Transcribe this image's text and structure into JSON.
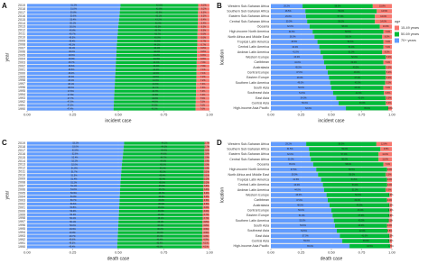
{
  "chart_data": [
    {
      "type": "bar",
      "orientation": "horizontal",
      "stacked": true,
      "panel": "A",
      "ylabel": "year",
      "xlabel": "incident case",
      "categories": [
        "2019",
        "2018",
        "2017",
        "2016",
        "2015",
        "2014",
        "2013",
        "2012",
        "2011",
        "2010",
        "2009",
        "2008",
        "2007",
        "2006",
        "2005",
        "2004",
        "2003",
        "2002",
        "2001",
        "2000",
        "1999",
        "1998",
        "1997",
        "1996",
        "1995",
        "1994",
        "1993",
        "1992",
        "1991",
        "1990"
      ],
      "xlim": [
        0,
        1
      ],
      "xticks": [
        {
          "value": 0,
          "label": "0.00"
        },
        0.25,
        {
          "value": 0.5,
          "label": "0.50"
        },
        0.75,
        {
          "value": 1,
          "label": "1.00"
        }
      ],
      "series": [
        {
          "color": "#619cff",
          "values": [
            0.512,
            0.51,
            0.508,
            0.506,
            0.504,
            0.502,
            0.5,
            0.498,
            0.497,
            0.495,
            0.494,
            0.492,
            0.491,
            0.49,
            0.489,
            0.488,
            0.487,
            0.486,
            0.485,
            0.484,
            0.483,
            0.482,
            0.481,
            0.48,
            0.479,
            0.478,
            0.477,
            0.476,
            0.475,
            0.474
          ],
          "value_labels": [
            "51.2%",
            "51.0%",
            "50.8%",
            "50.6%",
            "50.4%",
            "50.2%",
            "50.0%",
            "49.8%",
            "49.7%",
            "49.5%",
            "49.4%",
            "49.2%",
            "49.1%",
            "49.0%",
            "48.9%",
            "48.8%",
            "48.7%",
            "48.6%",
            "48.5%",
            "48.4%",
            "48.3%",
            "48.2%",
            "48.1%",
            "48.0%",
            "47.9%",
            "47.8%",
            "47.7%",
            "47.6%",
            "47.5%",
            "47.4%"
          ]
        },
        {
          "color": "#00ba38",
          "values": [
            0.426,
            0.428,
            0.429,
            0.431,
            0.432,
            0.434,
            0.435,
            0.437,
            0.437,
            0.439,
            0.439,
            0.441,
            0.441,
            0.442,
            0.442,
            0.443,
            0.443,
            0.444,
            0.444,
            0.445,
            0.445,
            0.446,
            0.446,
            0.447,
            0.447,
            0.448,
            0.448,
            0.449,
            0.449,
            0.45
          ],
          "value_labels": [
            "42.6%",
            "42.8%",
            "42.9%",
            "43.1%",
            "43.2%",
            "43.4%",
            "43.5%",
            "43.7%",
            "43.7%",
            "43.9%",
            "43.9%",
            "44.1%",
            "44.1%",
            "44.2%",
            "44.2%",
            "44.3%",
            "44.3%",
            "44.4%",
            "44.4%",
            "44.5%",
            "44.5%",
            "44.6%",
            "44.6%",
            "44.7%",
            "44.7%",
            "44.8%",
            "44.8%",
            "44.9%",
            "44.9%",
            "45.0%"
          ]
        },
        {
          "color": "#f8766d",
          "values": [
            0.062,
            0.062,
            0.063,
            0.063,
            0.064,
            0.064,
            0.065,
            0.065,
            0.066,
            0.066,
            0.067,
            0.067,
            0.068,
            0.068,
            0.069,
            0.069,
            0.07,
            0.07,
            0.071,
            0.071,
            0.072,
            0.072,
            0.073,
            0.073,
            0.074,
            0.074,
            0.075,
            0.075,
            0.076,
            0.076
          ],
          "value_labels": [
            "6.2%",
            "6.2%",
            "6.3%",
            "6.3%",
            "6.4%",
            "6.4%",
            "6.5%",
            "6.5%",
            "6.6%",
            "6.6%",
            "6.7%",
            "6.7%",
            "6.8%",
            "6.8%",
            "6.9%",
            "6.9%",
            "7.0%",
            "7.0%",
            "7.1%",
            "7.1%",
            "7.2%",
            "7.2%",
            "7.3%",
            "7.3%",
            "7.4%",
            "7.4%",
            "7.5%",
            "7.5%",
            "7.6%",
            "7.6%"
          ]
        }
      ]
    },
    {
      "type": "bar",
      "orientation": "horizontal",
      "stacked": true,
      "panel": "B",
      "ylabel": "location",
      "xlabel": "incident case",
      "legend": "right",
      "legend_title": "age",
      "categories": [
        "Western Sub-Saharan Africa",
        "Southern Sub-Saharan Africa",
        "Eastern Sub-Saharan Africa",
        "Central Sub-Saharan Africa",
        "Oceania",
        "High-income North America",
        "North Africa and Middle East",
        "Tropical Latin America",
        "Central Latin America",
        "Andean Latin America",
        "Western Europe",
        "Caribbean",
        "Australasia",
        "Central Europe",
        "Eastern Europe",
        "Southern Latin America",
        "South Asia",
        "Southeast Asia",
        "East Asia",
        "Central Asia",
        "High-income Asia Pacific"
      ],
      "xlim": [
        0,
        1
      ],
      "xticks": [
        {
          "value": 0,
          "label": "0.00"
        },
        0.25,
        {
          "value": 0.5,
          "label": "0.50"
        },
        0.75,
        {
          "value": 1,
          "label": "1.00"
        }
      ],
      "series": [
        {
          "name": "70+ years",
          "color": "#619cff",
          "values": [
            0.262,
            0.285,
            0.29,
            0.3,
            0.32,
            0.345,
            0.36,
            0.385,
            0.4,
            0.41,
            0.43,
            0.44,
            0.455,
            0.47,
            0.48,
            0.49,
            0.5,
            0.515,
            0.54,
            0.56,
            0.62
          ],
          "value_labels": [
            "26.2%",
            "28.5%",
            "29.0%",
            "30.0%",
            "32.0%",
            "34.5%",
            "36.0%",
            "38.5%",
            "40.0%",
            "41.0%",
            "43.0%",
            "44.0%",
            "45.5%",
            "47.0%",
            "48.0%",
            "49.0%",
            "50.0%",
            "51.5%",
            "54.0%",
            "56.0%",
            "62.0%"
          ]
        },
        {
          "name": "50-69 years",
          "color": "#00ba38",
          "values": [
            0.58,
            0.59,
            0.57,
            0.56,
            0.58,
            0.585,
            0.56,
            0.545,
            0.53,
            0.51,
            0.52,
            0.49,
            0.495,
            0.48,
            0.47,
            0.455,
            0.43,
            0.42,
            0.41,
            0.39,
            0.35
          ],
          "value_labels": [
            "58.0%",
            "59.0%",
            "57.0%",
            "56.0%",
            "58.0%",
            "58.5%",
            "56.0%",
            "54.5%",
            "53.0%",
            "51.0%",
            "52.0%",
            "49.0%",
            "49.5%",
            "48.0%",
            "47.0%",
            "45.5%",
            "43.0%",
            "42.0%",
            "41.0%",
            "39.0%",
            "35.0%"
          ]
        },
        {
          "name": "15-49 years",
          "color": "#f8766d",
          "values": [
            0.158,
            0.125,
            0.14,
            0.14,
            0.1,
            0.07,
            0.08,
            0.07,
            0.07,
            0.08,
            0.05,
            0.07,
            0.05,
            0.05,
            0.05,
            0.055,
            0.07,
            0.065,
            0.05,
            0.05,
            0.03
          ],
          "value_labels": [
            "15.8%",
            "12.5%",
            "14.0%",
            "14.0%",
            "10.0%",
            "7.0%",
            "8.0%",
            "7.0%",
            "7.0%",
            "8.0%",
            "5.0%",
            "7.0%",
            "5.0%",
            "5.0%",
            "5.0%",
            "5.5%",
            "7.0%",
            "6.5%",
            "5.0%",
            "5.0%",
            "3.0%"
          ]
        }
      ]
    },
    {
      "type": "bar",
      "orientation": "horizontal",
      "stacked": true,
      "panel": "C",
      "ylabel": "year",
      "xlabel": "death case",
      "categories": [
        "2019",
        "2018",
        "2017",
        "2016",
        "2015",
        "2014",
        "2013",
        "2012",
        "2011",
        "2010",
        "2009",
        "2008",
        "2007",
        "2006",
        "2005",
        "2004",
        "2003",
        "2002",
        "2001",
        "2000",
        "1999",
        "1998",
        "1997",
        "1996",
        "1995",
        "1994",
        "1993",
        "1992",
        "1991",
        "1990"
      ],
      "xlim": [
        0,
        1
      ],
      "xticks": [
        {
          "value": 0,
          "label": "0.00"
        },
        0.25,
        {
          "value": 0.5,
          "label": "0.50"
        },
        0.75,
        {
          "value": 1,
          "label": "1.00"
        }
      ],
      "series": [
        {
          "color": "#619cff",
          "values": [
            0.532,
            0.53,
            0.528,
            0.526,
            0.524,
            0.522,
            0.52,
            0.518,
            0.517,
            0.515,
            0.514,
            0.512,
            0.511,
            0.51,
            0.509,
            0.508,
            0.507,
            0.506,
            0.505,
            0.504,
            0.503,
            0.502,
            0.501,
            0.5,
            0.499,
            0.498,
            0.497,
            0.496,
            0.495,
            0.494
          ],
          "value_labels": [
            "53.2%",
            "53.0%",
            "52.8%",
            "52.6%",
            "52.4%",
            "52.2%",
            "52.0%",
            "51.8%",
            "51.7%",
            "51.5%",
            "51.4%",
            "51.2%",
            "51.1%",
            "51.0%",
            "50.9%",
            "50.8%",
            "50.7%",
            "50.6%",
            "50.5%",
            "50.4%",
            "50.3%",
            "50.2%",
            "50.1%",
            "50.0%",
            "49.9%",
            "49.8%",
            "49.7%",
            "49.6%",
            "49.5%",
            "49.4%"
          ]
        },
        {
          "color": "#00ba38",
          "values": [
            0.441,
            0.443,
            0.444,
            0.446,
            0.447,
            0.449,
            0.45,
            0.452,
            0.452,
            0.454,
            0.454,
            0.456,
            0.456,
            0.457,
            0.457,
            0.458,
            0.458,
            0.459,
            0.459,
            0.46,
            0.46,
            0.461,
            0.461,
            0.462,
            0.462,
            0.463,
            0.463,
            0.464,
            0.464,
            0.465
          ],
          "value_labels": [
            "44.1%",
            "44.3%",
            "44.4%",
            "44.6%",
            "44.7%",
            "44.9%",
            "45.0%",
            "45.2%",
            "45.2%",
            "45.4%",
            "45.4%",
            "45.6%",
            "45.6%",
            "45.7%",
            "45.7%",
            "45.8%",
            "45.8%",
            "45.9%",
            "45.9%",
            "46.0%",
            "46.0%",
            "46.1%",
            "46.1%",
            "46.2%",
            "46.2%",
            "46.3%",
            "46.3%",
            "46.4%",
            "46.4%",
            "46.5%"
          ]
        },
        {
          "color": "#f8766d",
          "values": [
            0.027,
            0.027,
            0.028,
            0.028,
            0.029,
            0.029,
            0.03,
            0.03,
            0.031,
            0.031,
            0.032,
            0.032,
            0.033,
            0.033,
            0.034,
            0.034,
            0.035,
            0.035,
            0.036,
            0.036,
            0.037,
            0.037,
            0.038,
            0.038,
            0.039,
            0.039,
            0.04,
            0.04,
            0.041,
            0.041
          ],
          "value_labels": [
            "2.7%",
            "2.7%",
            "2.8%",
            "2.8%",
            "2.9%",
            "2.9%",
            "3.0%",
            "3.0%",
            "3.1%",
            "3.1%",
            "3.2%",
            "3.2%",
            "3.3%",
            "3.3%",
            "3.4%",
            "3.4%",
            "3.5%",
            "3.5%",
            "3.6%",
            "3.6%",
            "3.7%",
            "3.7%",
            "3.8%",
            "3.8%",
            "3.9%",
            "3.9%",
            "4.0%",
            "4.0%",
            "4.1%",
            "4.1%"
          ]
        }
      ]
    },
    {
      "type": "bar",
      "orientation": "horizontal",
      "stacked": true,
      "panel": "D",
      "ylabel": "location",
      "xlabel": "death case",
      "categories": [
        "Western Sub-Saharan Africa",
        "Southern Sub-Saharan Africa",
        "Eastern Sub-Saharan Africa",
        "Central Sub-Saharan Africa",
        "Oceania",
        "High-income North America",
        "North Africa and Middle East",
        "Tropical Latin America",
        "Central Latin America",
        "Andean Latin America",
        "Western Europe",
        "Caribbean",
        "Australasia",
        "Central Europe",
        "Eastern Europe",
        "Southern Latin America",
        "South Asia",
        "Southeast Asia",
        "East Asia",
        "Central Asia",
        "High-income Asia Pacific"
      ],
      "xlim": [
        0,
        1
      ],
      "xticks": [
        {
          "value": 0,
          "label": "0.00"
        },
        0.25,
        {
          "value": 0.5,
          "label": "0.50"
        },
        0.75,
        {
          "value": 1,
          "label": "1.00"
        }
      ],
      "series": [
        {
          "color": "#619cff",
          "values": [
            0.292,
            0.315,
            0.32,
            0.33,
            0.35,
            0.375,
            0.39,
            0.415,
            0.43,
            0.44,
            0.46,
            0.47,
            0.485,
            0.5,
            0.51,
            0.52,
            0.53,
            0.545,
            0.57,
            0.59,
            0.65
          ],
          "value_labels": [
            "29.2%",
            "31.5%",
            "32.0%",
            "33.0%",
            "35.0%",
            "37.5%",
            "39.0%",
            "41.5%",
            "43.0%",
            "44.0%",
            "46.0%",
            "47.0%",
            "48.5%",
            "50.0%",
            "51.0%",
            "52.0%",
            "53.0%",
            "54.5%",
            "57.0%",
            "59.0%",
            "65.0%"
          ]
        },
        {
          "color": "#00ba38",
          "values": [
            0.58,
            0.59,
            0.57,
            0.56,
            0.58,
            0.585,
            0.56,
            0.545,
            0.53,
            0.51,
            0.52,
            0.49,
            0.495,
            0.48,
            0.47,
            0.455,
            0.43,
            0.42,
            0.41,
            0.39,
            0.335
          ],
          "value_labels": [
            "58.0%",
            "59.0%",
            "57.0%",
            "56.0%",
            "58.0%",
            "58.5%",
            "56.0%",
            "54.5%",
            "53.0%",
            "51.0%",
            "52.0%",
            "49.0%",
            "49.5%",
            "48.0%",
            "47.0%",
            "45.5%",
            "43.0%",
            "42.0%",
            "41.0%",
            "39.0%",
            "33.5%"
          ]
        },
        {
          "color": "#f8766d",
          "values": [
            0.128,
            0.095,
            0.11,
            0.11,
            0.07,
            0.04,
            0.05,
            0.04,
            0.04,
            0.05,
            0.02,
            0.04,
            0.02,
            0.02,
            0.02,
            0.025,
            0.04,
            0.035,
            0.02,
            0.02,
            0.015
          ],
          "value_labels": [
            "12.8%",
            "9.5%",
            "11.0%",
            "11.0%",
            "7.0%",
            "4.0%",
            "5.0%",
            "4.0%",
            "4.0%",
            "5.0%",
            "2.0%",
            "4.0%",
            "2.0%",
            "2.0%",
            "2.0%",
            "2.5%",
            "4.0%",
            "3.5%",
            "2.0%",
            "2.0%",
            "1.5%"
          ]
        }
      ]
    }
  ]
}
